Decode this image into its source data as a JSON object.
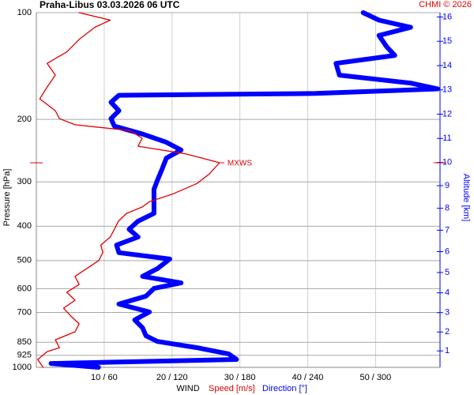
{
  "chart_data": {
    "type": "line",
    "title": "Praha-Libus   03.03.2026 06 UTC",
    "credit": "CHMI © 2026",
    "ylabel": "Pressure [hPa]",
    "y2label": "Altitude [km]",
    "xlabel": "WIND",
    "y_log": true,
    "grid": true,
    "ylim": [
      1000,
      100
    ],
    "yticks": [
      100,
      200,
      300,
      400,
      500,
      600,
      700,
      850,
      925,
      1000
    ],
    "xlim": [
      0,
      59.5
    ],
    "xticks": [
      {
        "value": 10,
        "label": "10 / 60"
      },
      {
        "value": 20,
        "label": "20 / 120"
      },
      {
        "value": 30,
        "label": "30 / 180"
      },
      {
        "value": 40,
        "label": "40 / 240"
      },
      {
        "value": 50,
        "label": "50 / 300"
      }
    ],
    "x2lim": [
      0,
      357
    ],
    "y2scale": "standard-atmosphere",
    "y2ticks": [
      1,
      2,
      3,
      4,
      5,
      6,
      7,
      8,
      9,
      10,
      11,
      12,
      13,
      14,
      15,
      16
    ],
    "series": [
      {
        "name": "Speed [m/s]",
        "color": "#e00000",
        "pressure": [
          1000,
          950,
          903,
          880,
          836,
          794,
          754,
          717,
          681,
          647,
          614,
          584,
          554,
          527,
          500,
          475,
          452,
          429,
          408,
          387,
          368,
          353,
          341,
          324,
          303,
          285,
          265,
          250,
          238,
          226,
          215,
          207,
          199,
          189,
          175,
          162,
          150,
          139,
          129,
          119,
          110,
          105,
          100
        ],
        "values": [
          1.0,
          0.2,
          1.6,
          3.4,
          2.8,
          5.7,
          6.3,
          5.1,
          4.0,
          5.7,
          4.5,
          6.3,
          5.7,
          7.4,
          9.2,
          9.8,
          9.5,
          10.9,
          11.5,
          12.1,
          13.3,
          15.6,
          16.7,
          20.2,
          23.7,
          25.5,
          27.0,
          22.0,
          15.0,
          15.6,
          13.8,
          5.7,
          3.4,
          2.8,
          0.5,
          1.6,
          2.8,
          1.6,
          4.5,
          6.3,
          8.6,
          10.9,
          6.3
        ]
      },
      {
        "name": "Direction [°]",
        "color": "#0000ff",
        "axis": "x2",
        "pressure": [
          1000,
          975,
          950,
          916,
          880,
          845,
          815,
          774,
          735,
          698,
          663,
          630,
          599,
          578,
          554,
          527,
          495,
          475,
          452,
          429,
          408,
          387,
          368,
          341,
          315,
          297,
          277,
          257,
          244,
          232,
          220,
          209,
          199,
          189,
          179,
          171,
          169,
          164,
          158,
          150,
          139,
          132,
          125,
          116,
          110,
          105,
          100
        ],
        "values": [
          55,
          13,
          177,
          170,
          142,
          107,
          97,
          94,
          87,
          100,
          73,
          97,
          104,
          128,
          94,
          107,
          118,
          73,
          71,
          90,
          82,
          90,
          104,
          104,
          104,
          107,
          111,
          115,
          128,
          115,
          94,
          69,
          66,
          73,
          66,
          73,
          247,
          355,
          331,
          268,
          265,
          317,
          310,
          303,
          331,
          303,
          289
        ]
      }
    ],
    "annotation": {
      "text": "MXWS",
      "pressure": 265,
      "value": 27.0
    }
  }
}
